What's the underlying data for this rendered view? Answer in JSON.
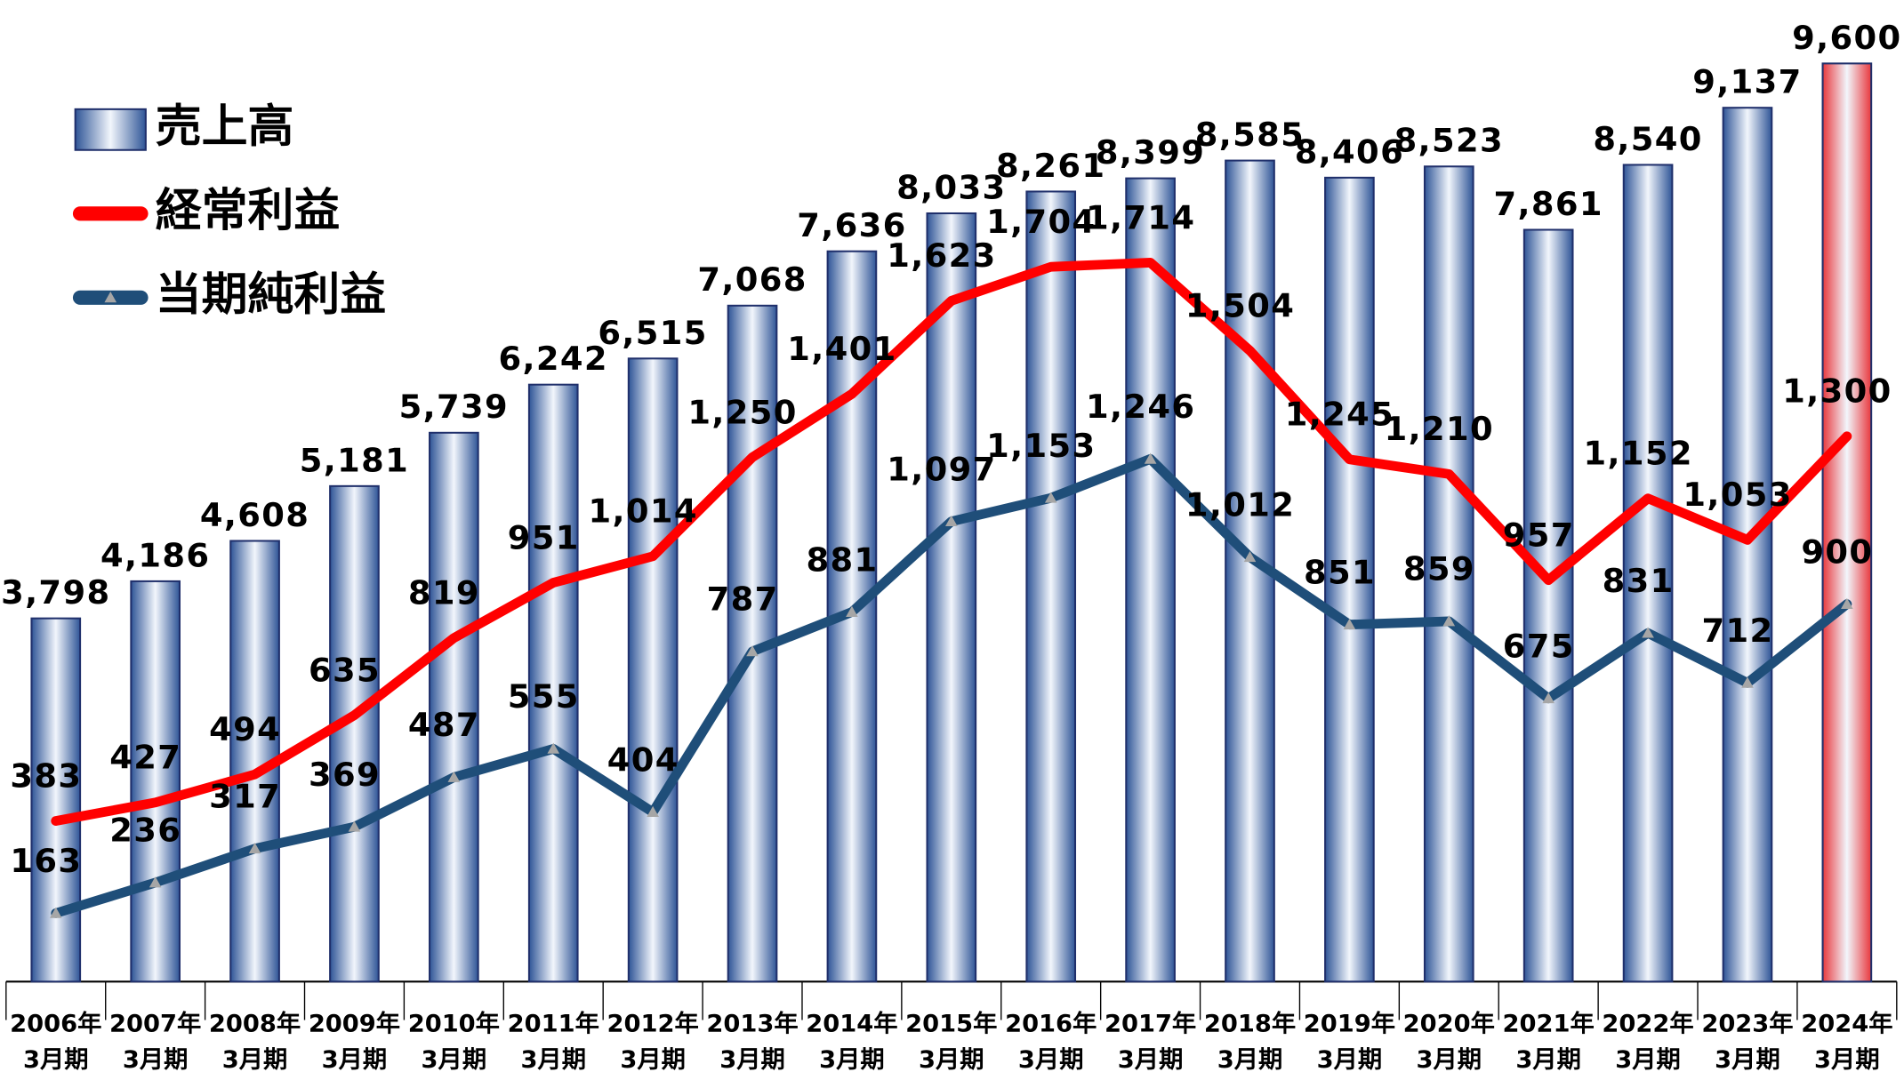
{
  "chart_data": {
    "type": "bar_line",
    "categories": [
      [
        "2006年",
        "3月期"
      ],
      [
        "2007年",
        "3月期"
      ],
      [
        "2008年",
        "3月期"
      ],
      [
        "2009年",
        "3月期"
      ],
      [
        "2010年",
        "3月期"
      ],
      [
        "2011年",
        "3月期"
      ],
      [
        "2012年",
        "3月期"
      ],
      [
        "2013年",
        "3月期"
      ],
      [
        "2014年",
        "3月期"
      ],
      [
        "2015年",
        "3月期"
      ],
      [
        "2016年",
        "3月期"
      ],
      [
        "2017年",
        "3月期"
      ],
      [
        "2018年",
        "3月期"
      ],
      [
        "2019年",
        "3月期"
      ],
      [
        "2020年",
        "3月期"
      ],
      [
        "2021年",
        "3月期"
      ],
      [
        "2022年",
        "3月期"
      ],
      [
        "2023年",
        "3月期"
      ],
      [
        "2024年",
        "3月期"
      ]
    ],
    "series": [
      {
        "name": "売上高",
        "kind": "bar",
        "color": "#2f5597",
        "colors": [
          "#2f5597",
          "#2f5597",
          "#2f5597",
          "#2f5597",
          "#2f5597",
          "#2f5597",
          "#2f5597",
          "#2f5597",
          "#2f5597",
          "#2f5597",
          "#2f5597",
          "#2f5597",
          "#2f5597",
          "#2f5597",
          "#2f5597",
          "#2f5597",
          "#2f5597",
          "#2f5597",
          "#e8383d"
        ],
        "values": [
          3798,
          4186,
          4608,
          5181,
          5739,
          6242,
          6515,
          7068,
          7636,
          8033,
          8261,
          8399,
          8585,
          8406,
          8523,
          7861,
          8540,
          9137,
          9600
        ],
        "value_labels": [
          "3,798",
          "4,186",
          "4,608",
          "5,181",
          "5,739",
          "6,242",
          "6,515",
          "7,068",
          "7,636",
          "8,033",
          "8,261",
          "8,399",
          "8,585",
          "8,406",
          "8,523",
          "7,861",
          "8,540",
          "9,137",
          "9,600"
        ]
      },
      {
        "name": "経常利益",
        "kind": "line",
        "axis": "y2",
        "color": "#ff0000",
        "values": [
          383,
          427,
          494,
          635,
          819,
          951,
          1014,
          1250,
          1401,
          1623,
          1704,
          1714,
          1504,
          1245,
          1210,
          957,
          1152,
          1053,
          1300
        ],
        "value_labels": [
          "383",
          "427",
          "494",
          "635",
          "819",
          "951",
          "1,014",
          "1,250",
          "1,401",
          "1,623",
          "1,704",
          "1,714",
          "1,504",
          "1,245",
          "1,210",
          "957",
          "1,152",
          "1,053",
          "1,300"
        ]
      },
      {
        "name": "当期純利益",
        "kind": "line",
        "axis": "y2",
        "color": "#1f4e79",
        "marker": "triangle",
        "values": [
          163,
          236,
          317,
          369,
          487,
          555,
          404,
          787,
          881,
          1097,
          1153,
          1246,
          1012,
          851,
          859,
          675,
          831,
          712,
          900
        ],
        "value_labels": [
          "163",
          "236",
          "317",
          "369",
          "487",
          "555",
          "404",
          "787",
          "881",
          "1,097",
          "1,153",
          "1,246",
          "1,012",
          "851",
          "859",
          "675",
          "831",
          "712",
          "900"
        ]
      }
    ],
    "ylim": [
      0,
      10000
    ],
    "y2lim": [
      0,
      2280
    ],
    "legend": "upper left"
  }
}
